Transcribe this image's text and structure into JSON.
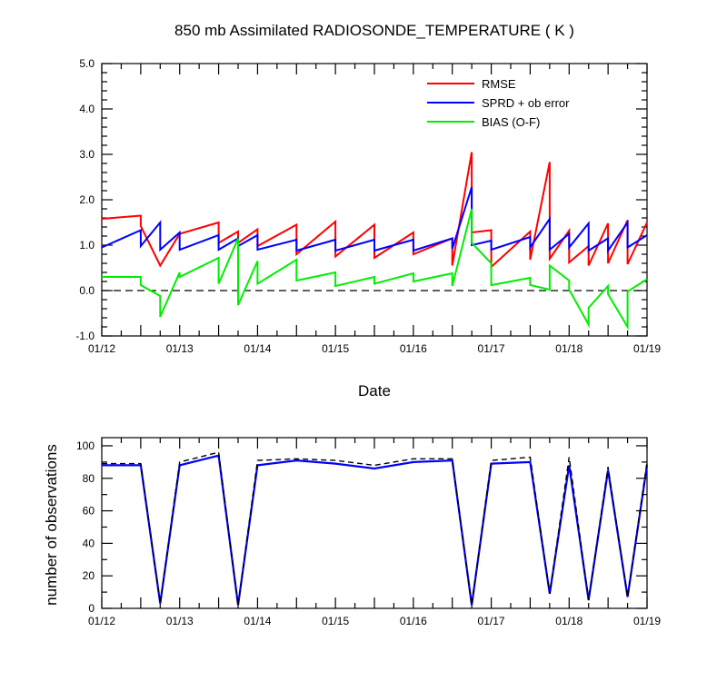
{
  "chart_data": [
    {
      "type": "line",
      "title": "850 mb Assimilated RADIOSONDE_TEMPERATURE ( K )",
      "xlabel": "Date",
      "ylabel": "",
      "x_tick_labels": [
        "01/12",
        "01/13",
        "01/14",
        "01/15",
        "01/16",
        "01/17",
        "01/18",
        "01/19"
      ],
      "x_tick_days": [
        0,
        1,
        2,
        3,
        4,
        5,
        6,
        7
      ],
      "xlim": [
        0,
        7
      ],
      "ylim": [
        -1.0,
        5.0
      ],
      "y_tick_labels": [
        "-1.0",
        "0.0",
        "1.0",
        "2.0",
        "3.0",
        "4.0",
        "5.0"
      ],
      "y_ticks": [
        -1,
        0,
        1,
        2,
        3,
        4,
        5
      ],
      "legend_position": "top-right",
      "reference_line": {
        "y": 0.0,
        "style": "dashed",
        "color": "#000000"
      },
      "series": [
        {
          "name": "RMSE",
          "color": "#ff0000",
          "points": [
            [
              0,
              1.58
            ],
            [
              0.5,
              1.65
            ],
            [
              0.5,
              1.42
            ],
            [
              0.75,
              0.55
            ],
            [
              1.0,
              1.25
            ],
            [
              1.5,
              1.5
            ],
            [
              1.5,
              1.05
            ],
            [
              1.75,
              1.3
            ],
            [
              1.75,
              1.05
            ],
            [
              2.0,
              1.35
            ],
            [
              2.0,
              0.98
            ],
            [
              2.5,
              1.45
            ],
            [
              2.5,
              0.8
            ],
            [
              3.0,
              1.52
            ],
            [
              3.0,
              0.75
            ],
            [
              3.5,
              1.45
            ],
            [
              3.5,
              0.72
            ],
            [
              4.0,
              1.28
            ],
            [
              4.0,
              0.8
            ],
            [
              4.5,
              1.15
            ],
            [
              4.5,
              0.55
            ],
            [
              4.75,
              3.05
            ],
            [
              4.75,
              1.28
            ],
            [
              5.0,
              1.33
            ],
            [
              5.0,
              0.52
            ],
            [
              5.5,
              1.3
            ],
            [
              5.5,
              0.68
            ],
            [
              5.75,
              2.83
            ],
            [
              5.75,
              0.7
            ],
            [
              6.0,
              1.32
            ],
            [
              6.0,
              0.62
            ],
            [
              6.25,
              0.98
            ],
            [
              6.25,
              0.55
            ],
            [
              6.5,
              1.48
            ],
            [
              6.5,
              0.6
            ],
            [
              6.75,
              1.55
            ],
            [
              6.75,
              0.58
            ],
            [
              7.0,
              1.5
            ]
          ]
        },
        {
          "name": "SPRD + ob error",
          "color": "#0000ff",
          "points": [
            [
              0,
              0.95
            ],
            [
              0.5,
              1.33
            ],
            [
              0.5,
              0.98
            ],
            [
              0.75,
              1.5
            ],
            [
              0.75,
              0.9
            ],
            [
              1.0,
              1.28
            ],
            [
              1.0,
              0.9
            ],
            [
              1.5,
              1.22
            ],
            [
              1.5,
              0.9
            ],
            [
              1.75,
              1.15
            ],
            [
              1.75,
              0.98
            ],
            [
              2.0,
              1.22
            ],
            [
              2.0,
              0.9
            ],
            [
              2.5,
              1.12
            ],
            [
              2.5,
              0.88
            ],
            [
              3.0,
              1.12
            ],
            [
              3.0,
              0.88
            ],
            [
              3.5,
              1.12
            ],
            [
              3.5,
              0.88
            ],
            [
              4.0,
              1.12
            ],
            [
              4.0,
              0.88
            ],
            [
              4.5,
              1.15
            ],
            [
              4.5,
              0.92
            ],
            [
              4.75,
              2.28
            ],
            [
              4.75,
              1.0
            ],
            [
              5.0,
              1.1
            ],
            [
              5.0,
              0.9
            ],
            [
              5.5,
              1.18
            ],
            [
              5.5,
              0.95
            ],
            [
              5.75,
              1.58
            ],
            [
              5.75,
              0.9
            ],
            [
              6.0,
              1.25
            ],
            [
              6.0,
              0.95
            ],
            [
              6.25,
              1.48
            ],
            [
              6.25,
              0.88
            ],
            [
              6.5,
              1.15
            ],
            [
              6.5,
              0.88
            ],
            [
              6.75,
              1.5
            ],
            [
              6.75,
              0.95
            ],
            [
              7.0,
              1.22
            ]
          ]
        },
        {
          "name": "BIAS (O-F)",
          "color": "#00ee00",
          "points": [
            [
              0,
              0.3
            ],
            [
              0.5,
              0.3
            ],
            [
              0.5,
              0.12
            ],
            [
              0.75,
              -0.12
            ],
            [
              0.75,
              -0.58
            ],
            [
              1.0,
              0.4
            ],
            [
              1.0,
              0.3
            ],
            [
              1.5,
              0.72
            ],
            [
              1.5,
              0.15
            ],
            [
              1.75,
              1.15
            ],
            [
              1.75,
              -0.32
            ],
            [
              2.0,
              0.65
            ],
            [
              2.0,
              0.15
            ],
            [
              2.5,
              0.68
            ],
            [
              2.5,
              0.22
            ],
            [
              3.0,
              0.4
            ],
            [
              3.0,
              0.1
            ],
            [
              3.5,
              0.3
            ],
            [
              3.5,
              0.15
            ],
            [
              4.0,
              0.38
            ],
            [
              4.0,
              0.2
            ],
            [
              4.5,
              0.38
            ],
            [
              4.5,
              0.1
            ],
            [
              4.75,
              1.8
            ],
            [
              4.75,
              1.05
            ],
            [
              5.0,
              0.6
            ],
            [
              5.0,
              0.12
            ],
            [
              5.5,
              0.28
            ],
            [
              5.5,
              0.12
            ],
            [
              5.75,
              0.02
            ],
            [
              5.75,
              0.55
            ],
            [
              6.0,
              0.22
            ],
            [
              6.0,
              0.02
            ],
            [
              6.25,
              -0.75
            ],
            [
              6.25,
              -0.38
            ],
            [
              6.5,
              0.1
            ],
            [
              6.5,
              -0.08
            ],
            [
              6.75,
              -0.8
            ],
            [
              6.75,
              -0.02
            ],
            [
              7.0,
              0.25
            ]
          ]
        }
      ]
    },
    {
      "type": "line",
      "title": "",
      "xlabel": "",
      "ylabel": "number of observations",
      "x_tick_labels": [
        "01/12",
        "01/13",
        "01/14",
        "01/15",
        "01/16",
        "01/17",
        "01/18",
        "01/19"
      ],
      "x_tick_days": [
        0,
        1,
        2,
        3,
        4,
        5,
        6,
        7
      ],
      "xlim": [
        0,
        7
      ],
      "ylim": [
        0,
        105
      ],
      "y_tick_labels": [
        "0",
        "20",
        "40",
        "60",
        "80",
        "100"
      ],
      "y_ticks": [
        0,
        20,
        40,
        60,
        80,
        100
      ],
      "series": [
        {
          "style": "dashed",
          "color": "#000000",
          "x": [
            0,
            0.5,
            0.75,
            1.0,
            1.5,
            1.75,
            2.0,
            2.5,
            3.0,
            3.5,
            4.0,
            4.5,
            4.75,
            5.0,
            5.5,
            5.75,
            6.0,
            6.25,
            6.5,
            6.75,
            7.0
          ],
          "values": [
            89,
            89,
            3,
            90,
            96,
            2,
            91,
            92,
            91,
            88,
            92,
            92,
            2,
            91,
            93,
            9,
            93,
            5,
            87,
            7,
            90
          ]
        },
        {
          "style": "solid",
          "color": "#0000ff",
          "x": [
            0,
            0.5,
            0.75,
            1.0,
            1.5,
            1.75,
            2.0,
            2.5,
            3.0,
            3.5,
            4.0,
            4.5,
            4.75,
            5.0,
            5.5,
            5.75,
            6.0,
            6.25,
            6.5,
            6.75,
            7.0
          ],
          "values": [
            88,
            88,
            3,
            88,
            94,
            2,
            88,
            91,
            89,
            86,
            90,
            91,
            2,
            89,
            90,
            9,
            88,
            5,
            85,
            7,
            88
          ]
        }
      ]
    }
  ]
}
